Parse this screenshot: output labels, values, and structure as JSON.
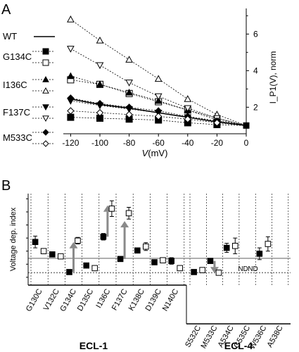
{
  "chart_data": [
    {
      "panel": "A",
      "type": "line",
      "xlabel_italic": "V",
      "xlabel_rest": "(mV)",
      "ylabel": "I_P1(V), norm",
      "x_ticks": [
        "-120",
        "-100",
        "-80",
        "-60",
        "-40",
        "-20",
        "0"
      ],
      "y_ticks": [
        "2",
        "4",
        "6"
      ],
      "xlim": [
        -125,
        0
      ],
      "ylim": [
        0.55,
        7.4
      ],
      "x": [
        -120,
        -100,
        -80,
        -60,
        -40,
        -20,
        0
      ],
      "legend_labels": [
        "WT",
        "G134C",
        "I136C",
        "F137C",
        "M533C"
      ],
      "series": [
        {
          "name": "WT",
          "marker": "none",
          "values": [
            2.45,
            2.15,
            1.95,
            1.7,
            1.45,
            1.2,
            1.0
          ]
        },
        {
          "name": "G134C",
          "marker": "square-filled",
          "values": [
            1.45,
            1.4,
            1.35,
            1.3,
            1.15,
            1.05,
            1.0
          ]
        },
        {
          "name": "G134C",
          "marker": "square-open",
          "values": [
            3.5,
            3.25,
            2.75,
            2.3,
            1.85,
            1.3,
            1.0
          ]
        },
        {
          "name": "I136C",
          "marker": "triangle-filled",
          "values": [
            3.7,
            3.25,
            2.8,
            2.35,
            1.85,
            1.4,
            1.0
          ]
        },
        {
          "name": "I136C",
          "marker": "triangle-open",
          "values": [
            6.8,
            5.65,
            4.6,
            3.55,
            2.45,
            1.6,
            1.0
          ]
        },
        {
          "name": "F137C",
          "marker": "triangle-down-filled",
          "values": [
            2.35,
            2.1,
            1.9,
            1.7,
            1.45,
            1.2,
            1.0
          ]
        },
        {
          "name": "F137C",
          "marker": "triangle-down-open",
          "values": [
            5.2,
            4.3,
            3.35,
            2.6,
            1.95,
            1.4,
            1.0
          ]
        },
        {
          "name": "M533C",
          "marker": "diamond-filled",
          "values": [
            2.5,
            2.2,
            2.0,
            1.8,
            1.5,
            1.25,
            1.0
          ]
        },
        {
          "name": "M533C",
          "marker": "diamond-open",
          "values": [
            1.8,
            1.7,
            1.6,
            1.5,
            1.35,
            1.15,
            1.0
          ]
        }
      ]
    },
    {
      "panel": "B",
      "type": "scatter",
      "ylabel": "Voltage dep. index",
      "categories": [
        "G130C",
        "V132C",
        "G134C",
        "D135C",
        "I136C",
        "F137C",
        "K138C",
        "D139C",
        "N140C",
        "S532C",
        "M533C",
        "A534C",
        "G535C",
        "W536C",
        "A538C"
      ],
      "group_labels": [
        "ECL-1",
        "ECL-4"
      ],
      "group_sizes": [
        9,
        6
      ],
      "ylim": [
        0.4,
        7.4
      ],
      "wt_solid_line": 2.45,
      "wt_dotted_line": 1.35,
      "nd_label": "ND",
      "nd_categories": [
        "G535C"
      ],
      "filled": [
        {
          "cat": "G130C",
          "value": 3.7,
          "err": 0.45
        },
        {
          "cat": "V132C",
          "value": 2.75,
          "err": 0
        },
        {
          "cat": "G134C",
          "value": 1.4,
          "err": 0
        },
        {
          "cat": "D135C",
          "value": 1.9,
          "err": 0
        },
        {
          "cat": "I136C",
          "value": 4.1,
          "err": 0.25
        },
        {
          "cat": "F137C",
          "value": 2.4,
          "err": 0
        },
        {
          "cat": "K138C",
          "value": 3.05,
          "err": 0.2
        },
        {
          "cat": "D139C",
          "value": 2.15,
          "err": 0
        },
        {
          "cat": "N140C",
          "value": 2.25,
          "err": 0.25
        },
        {
          "cat": "S532C",
          "value": 1.4,
          "err": 0
        },
        {
          "cat": "M533C",
          "value": 2.25,
          "err": 0
        },
        {
          "cat": "A534C",
          "value": 3.25,
          "err": 0.35
        },
        {
          "cat": "W536C",
          "value": 2.8,
          "err": 0.45
        }
      ],
      "open": [
        {
          "cat": "G130C",
          "value": 3.0,
          "err": 0.2
        },
        {
          "cat": "V132C",
          "value": 2.6,
          "err": 0
        },
        {
          "cat": "G134C",
          "value": 3.8,
          "err": 0.25
        },
        {
          "cat": "D135C",
          "value": 1.7,
          "err": 0
        },
        {
          "cat": "I136C",
          "value": 6.25,
          "err": 0.6
        },
        {
          "cat": "F137C",
          "value": 5.9,
          "err": 0.45
        },
        {
          "cat": "K138C",
          "value": 3.35,
          "err": 0.3
        },
        {
          "cat": "D139C",
          "value": 2.3,
          "err": 0
        },
        {
          "cat": "N140C",
          "value": 1.7,
          "err": 0.15
        },
        {
          "cat": "S532C",
          "value": 1.55,
          "err": 0
        },
        {
          "cat": "M533C",
          "value": 1.35,
          "err": 0
        },
        {
          "cat": "A534C",
          "value": 3.4,
          "err": 0.6
        },
        {
          "cat": "W536C",
          "value": 3.55,
          "err": 0.55
        }
      ],
      "arrows": [
        {
          "cat": "G134C",
          "from": 1.4,
          "to": 3.7
        },
        {
          "cat": "I136C",
          "from": 4.1,
          "to": 6.5
        },
        {
          "cat": "F137C",
          "from": 2.4,
          "to": 5.3
        },
        {
          "cat": "M533C",
          "from": 2.25,
          "to": 1.3
        }
      ]
    }
  ],
  "labels": {
    "panel_a": "A",
    "panel_b": "B"
  }
}
